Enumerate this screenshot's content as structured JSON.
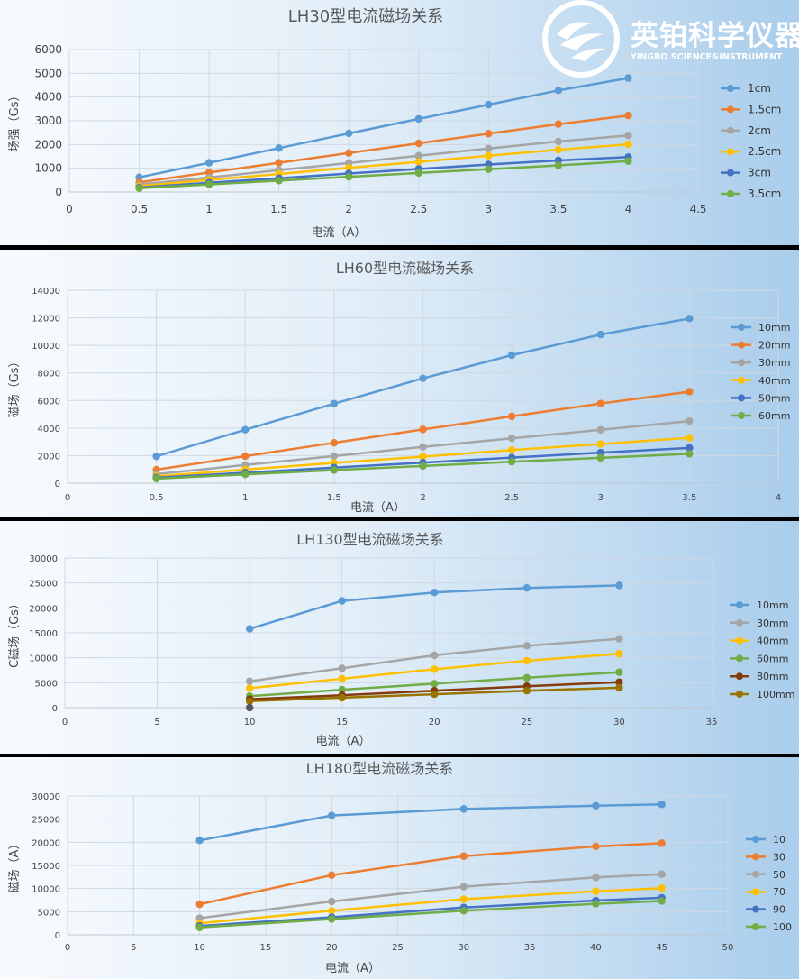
{
  "logo": {
    "name_cn": "英铂科学仪器",
    "name_en": "YINGBO SCIENCE&INSTRUMENT"
  },
  "chart_data": [
    {
      "type": "line",
      "title": "LH30型电流磁场关系",
      "xlabel": "电流（A）",
      "ylabel": "场强（Gs）",
      "xlim": [
        0,
        4.5
      ],
      "ylim": [
        0,
        6000
      ],
      "xticks": [
        "0",
        "0.5",
        "1",
        "1.5",
        "2",
        "2.5",
        "3",
        "3.5",
        "4",
        "4.5"
      ],
      "yticks": [
        "0",
        "1000",
        "2000",
        "3000",
        "4000",
        "5000",
        "6000"
      ],
      "x": [
        0.5,
        1,
        1.5,
        2,
        2.5,
        3,
        3.5,
        4
      ],
      "series": [
        {
          "name": "1cm",
          "color": "#5b9bd5",
          "values": [
            620,
            1230,
            1850,
            2470,
            3080,
            3680,
            4280,
            4800
          ]
        },
        {
          "name": "1.5cm",
          "color": "#ed7d31",
          "values": [
            410,
            820,
            1230,
            1640,
            2050,
            2460,
            2860,
            3220
          ]
        },
        {
          "name": "2cm",
          "color": "#a5a5a5",
          "values": [
            310,
            610,
            920,
            1220,
            1530,
            1830,
            2130,
            2380
          ]
        },
        {
          "name": "2.5cm",
          "color": "#ffc000",
          "values": [
            250,
            510,
            760,
            1020,
            1270,
            1530,
            1780,
            2010
          ]
        },
        {
          "name": "3cm",
          "color": "#4472c4",
          "values": [
            190,
            390,
            580,
            780,
            970,
            1160,
            1330,
            1470
          ]
        },
        {
          "name": "3.5cm",
          "color": "#70ad47",
          "values": [
            160,
            320,
            480,
            640,
            800,
            960,
            1120,
            1300
          ]
        }
      ]
    },
    {
      "type": "line",
      "title": "LH60型电流磁场关系",
      "xlabel": "电流（A）",
      "ylabel": "磁场（Gs）",
      "xlim": [
        0,
        4
      ],
      "ylim": [
        0,
        14000
      ],
      "xticks": [
        "0",
        "0.5",
        "1",
        "1.5",
        "2",
        "2.5",
        "3",
        "3.5",
        "4"
      ],
      "yticks": [
        "0",
        "2000",
        "4000",
        "6000",
        "8000",
        "10000",
        "12000",
        "14000"
      ],
      "x": [
        0.5,
        1,
        1.5,
        2,
        2.5,
        3,
        3.5
      ],
      "series": [
        {
          "name": "10mm",
          "color": "#5b9bd5",
          "values": [
            1950,
            3880,
            5770,
            7610,
            9290,
            10790,
            11950
          ]
        },
        {
          "name": "20mm",
          "color": "#ed7d31",
          "values": [
            980,
            1960,
            2930,
            3900,
            4850,
            5780,
            6640
          ]
        },
        {
          "name": "30mm",
          "color": "#a5a5a5",
          "values": [
            660,
            1320,
            1970,
            2630,
            3260,
            3870,
            4510
          ]
        },
        {
          "name": "40mm",
          "color": "#ffc000",
          "values": [
            500,
            990,
            1470,
            1930,
            2410,
            2840,
            3300
          ]
        },
        {
          "name": "50mm",
          "color": "#4472c4",
          "values": [
            400,
            760,
            1130,
            1490,
            1860,
            2220,
            2560
          ]
        },
        {
          "name": "60mm",
          "color": "#70ad47",
          "values": [
            330,
            640,
            950,
            1250,
            1560,
            1840,
            2130
          ]
        }
      ]
    },
    {
      "type": "line",
      "title": "LH130型电流磁场关系",
      "xlabel": "电流（A）",
      "ylabel": "C磁场（Gs）",
      "xlim": [
        0,
        35
      ],
      "ylim": [
        0,
        30000
      ],
      "xticks": [
        "0",
        "5",
        "10",
        "15",
        "20",
        "25",
        "30",
        "35"
      ],
      "yticks": [
        "0",
        "5000",
        "10000",
        "15000",
        "20000",
        "25000",
        "30000"
      ],
      "x": [
        10,
        15,
        20,
        25,
        30
      ],
      "series": [
        {
          "name": "10mm",
          "color": "#5b9bd5",
          "values": [
            15800,
            21400,
            23100,
            24000,
            24500
          ]
        },
        {
          "name": "30mm",
          "color": "#a5a5a5",
          "values": [
            5300,
            7900,
            10500,
            12400,
            13800
          ]
        },
        {
          "name": "40mm",
          "color": "#ffc000",
          "values": [
            3900,
            5800,
            7700,
            9400,
            10800
          ]
        },
        {
          "name": "60mm",
          "color": "#70ad47",
          "values": [
            2300,
            3600,
            4800,
            6000,
            7100
          ]
        },
        {
          "name": "80mm",
          "color": "#843c0c",
          "values": [
            1700,
            2500,
            3400,
            4300,
            5100
          ]
        },
        {
          "name": "100mm",
          "color": "#997300",
          "values": [
            1300,
            2000,
            2700,
            3400,
            4000
          ]
        }
      ],
      "extra_point": {
        "x": 10,
        "y": 0
      }
    },
    {
      "type": "line",
      "title": "LH180型电流磁场关系",
      "xlabel": "电流（A）",
      "ylabel": "磁场（A）",
      "xlim": [
        0,
        50
      ],
      "ylim": [
        0,
        30000
      ],
      "xticks": [
        "0",
        "5",
        "10",
        "15",
        "20",
        "25",
        "30",
        "35",
        "40",
        "45",
        "50"
      ],
      "yticks": [
        "0",
        "5000",
        "10000",
        "15000",
        "20000",
        "25000",
        "30000"
      ],
      "x": [
        10,
        20,
        30,
        40,
        45
      ],
      "series": [
        {
          "name": "10",
          "color": "#5b9bd5",
          "values": [
            20400,
            25800,
            27200,
            27900,
            28200
          ]
        },
        {
          "name": "30",
          "color": "#ed7d31",
          "values": [
            6600,
            12900,
            17000,
            19100,
            19800
          ]
        },
        {
          "name": "50",
          "color": "#a5a5a5",
          "values": [
            3600,
            7200,
            10400,
            12400,
            13100
          ]
        },
        {
          "name": "70",
          "color": "#ffc000",
          "values": [
            2500,
            5200,
            7700,
            9400,
            10100
          ]
        },
        {
          "name": "90",
          "color": "#4472c4",
          "values": [
            1900,
            3800,
            5900,
            7400,
            8000
          ]
        },
        {
          "name": "100",
          "color": "#70ad47",
          "values": [
            1600,
            3400,
            5200,
            6700,
            7300
          ]
        }
      ]
    }
  ]
}
